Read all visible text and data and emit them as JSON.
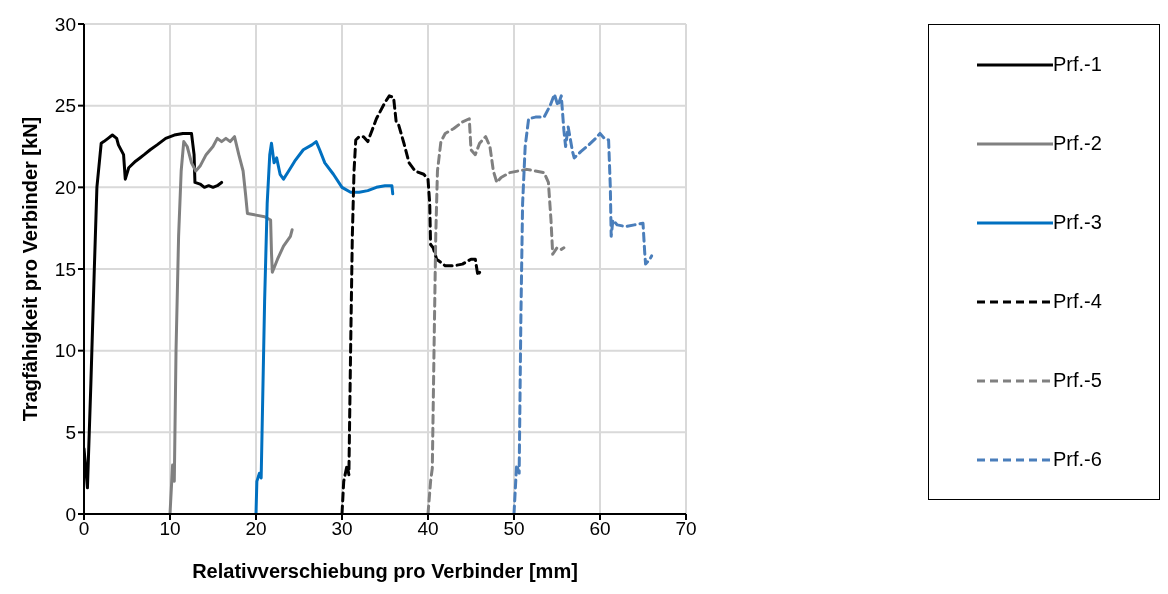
{
  "chart_data": {
    "type": "line",
    "xlabel": "Relativverschiebung pro Verbinder [mm]",
    "ylabel": "Tragfähigkeit pro Verbinder [kN]",
    "xlim": [
      0,
      70
    ],
    "xticks": [
      0,
      10,
      20,
      30,
      40,
      50,
      60,
      70
    ],
    "ylim": [
      0,
      30
    ],
    "yticks": [
      0,
      5,
      10,
      15,
      20,
      25,
      30
    ],
    "grid": true,
    "legend": "right",
    "marker": "none",
    "series": [
      {
        "name": "Prf.-1",
        "color": "#000000",
        "line_style": "solid",
        "x": [
          0,
          0.4,
          0.8,
          1.2,
          1.5,
          2.0,
          2.3,
          2.8,
          3.3,
          3.8,
          4.0,
          4.6,
          4.8,
          5.2,
          6,
          6.5,
          7,
          7.7,
          8.5,
          9.5,
          10.5,
          11.5,
          12.5,
          12.8,
          12.9,
          13.5,
          14,
          14.5,
          15,
          15.5,
          16
        ],
        "values": [
          4,
          1.6,
          8,
          15,
          20,
          22.7,
          22.8,
          23,
          23.2,
          23,
          22.6,
          22,
          20.5,
          21.2,
          21.6,
          21.8,
          22,
          22.3,
          22.6,
          23,
          23.2,
          23.3,
          23.3,
          22,
          20.3,
          20.2,
          20,
          20.1,
          20,
          20.1,
          20.3
        ]
      },
      {
        "name": "Prf.-2",
        "color": "#808080",
        "line_style": "solid",
        "x": [
          10,
          10.3,
          10.5,
          10.7,
          11,
          11.3,
          11.6,
          12,
          12.5,
          13,
          13.5,
          14.2,
          15,
          15.5,
          16,
          16.5,
          17,
          17.5,
          18,
          18.5,
          18.8,
          19,
          20,
          21,
          21.7,
          21.8,
          21.9,
          22.5,
          23.2,
          24,
          24.2
        ],
        "values": [
          0,
          3,
          2,
          10,
          17,
          21,
          22.8,
          22.5,
          21.5,
          21,
          21.3,
          22,
          22.5,
          23,
          22.8,
          23,
          22.8,
          23.1,
          22,
          21,
          19.5,
          18.4,
          18.3,
          18.2,
          18,
          16,
          14.8,
          15.6,
          16.4,
          17,
          17.4
        ]
      },
      {
        "name": "Prf.-3",
        "color": "#0070c0",
        "line_style": "solid",
        "x": [
          20,
          20.1,
          20.4,
          20.6,
          21,
          21.3,
          21.6,
          21.8,
          22.1,
          22.4,
          22.8,
          23.2,
          23.8,
          24.5,
          25.5,
          26.5,
          27,
          27.4,
          28,
          29,
          30,
          31,
          32,
          33,
          34,
          35,
          35.8,
          35.9
        ],
        "values": [
          0,
          2,
          2.5,
          2.2,
          13,
          19,
          22,
          22.7,
          21.5,
          21.8,
          20.8,
          20.5,
          21,
          21.6,
          22.3,
          22.6,
          22.8,
          22.3,
          21.5,
          20.8,
          20,
          19.7,
          19.7,
          19.8,
          20,
          20.1,
          20.1,
          19.6
        ]
      },
      {
        "name": "Prf.-4",
        "color": "#000000",
        "line_style": "dashed",
        "x": [
          30,
          30.2,
          30.6,
          30.8,
          31,
          31.2,
          31.4,
          31.6,
          32,
          32.5,
          33,
          33.5,
          34,
          35,
          35.5,
          36,
          36.3,
          36.6,
          37.2,
          37.8,
          38.5,
          39.5,
          40,
          40.2,
          40.3,
          40.6,
          41,
          42,
          43,
          44,
          45,
          45.5,
          45.8,
          46
        ],
        "values": [
          0,
          2,
          3,
          2.4,
          10,
          17,
          21,
          22.9,
          23.1,
          23.1,
          22.8,
          23.5,
          24.2,
          25.2,
          25.6,
          25.5,
          24,
          23.8,
          22.7,
          21.5,
          21,
          20.8,
          20.5,
          19,
          16.5,
          16.3,
          15.6,
          15.2,
          15.2,
          15.3,
          15.6,
          15.6,
          14.6,
          14.8
        ]
      },
      {
        "name": "Prf.-5",
        "color": "#808080",
        "line_style": "dashed",
        "x": [
          40,
          40.3,
          40.5,
          40.7,
          40.9,
          41.1,
          41.5,
          42,
          43,
          44,
          44.8,
          45,
          45.5,
          46,
          46.7,
          47.2,
          47.6,
          48,
          48.5,
          49.5,
          50.5,
          51.5,
          52.5,
          53.5,
          54,
          54.3,
          54.5,
          55,
          55.5,
          55.8
        ],
        "values": [
          0,
          2,
          2.8,
          10,
          17,
          21,
          22.8,
          23.3,
          23.6,
          24,
          24.2,
          22.3,
          22,
          22.7,
          23.1,
          22.5,
          21,
          20.3,
          20.6,
          20.9,
          21,
          21.1,
          21,
          20.9,
          20.3,
          18,
          15.9,
          16.3,
          16.2,
          16.3
        ]
      },
      {
        "name": "Prf.-6",
        "color": "#4a7ebb",
        "line_style": "dashed",
        "x": [
          50,
          50.3,
          50.6,
          50.8,
          51,
          51.3,
          51.7,
          52.5,
          53.5,
          54.2,
          54.7,
          55.1,
          55.5,
          55.8,
          56,
          56.3,
          56.8,
          57,
          57.8,
          58.7,
          59.5,
          60,
          60.5,
          61,
          61.2,
          61.3,
          61.5,
          62,
          63,
          64,
          65,
          65.2,
          65.3,
          65.8,
          66
        ],
        "values": [
          0,
          3,
          2.5,
          12,
          19,
          22.5,
          24.2,
          24.3,
          24.3,
          25,
          25.7,
          25,
          25.6,
          23.5,
          22.5,
          23.7,
          22.2,
          21.8,
          22.2,
          22.6,
          23,
          23.3,
          23,
          22.9,
          20,
          17,
          18,
          17.7,
          17.6,
          17.7,
          17.8,
          16,
          15.3,
          15.6,
          15.8
        ]
      }
    ]
  }
}
